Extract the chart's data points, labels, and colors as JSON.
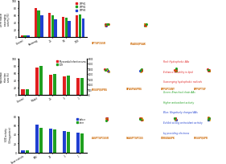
{
  "top_chart": {
    "categories": [
      "Control",
      "Pretreag",
      "25",
      "50",
      "100"
    ],
    "series": [
      {
        "color": "#e02020",
        "label": "DPPH1",
        "values": [
          3.5,
          78,
          65,
          55,
          60
        ]
      },
      {
        "color": "#20a020",
        "label": "DPPH2",
        "values": [
          3.5,
          72,
          58,
          52,
          62
        ]
      },
      {
        "color": "#2040d0",
        "label": "DPPH3",
        "values": [
          3.5,
          60,
          48,
          44,
          50
        ]
      }
    ],
    "ylim": [
      0,
      100
    ],
    "ylabel": "DPPH radical\nscavenging\nactivity (%)"
  },
  "mid_chart": {
    "categories": [
      "Control",
      "Model",
      "25",
      "5",
      "1"
    ],
    "red_vals": [
      15,
      75,
      55,
      50,
      45
    ],
    "green_vals": [
      500,
      2800,
      2000,
      1800,
      1600
    ],
    "ylim_left": [
      0,
      100
    ],
    "ylim_right": [
      0,
      3500
    ],
    "ylabel_left": "Myocardial\ninfarction\narea (%)",
    "label_red": "Myocardial infarction area",
    "label_green": "LDH"
  },
  "bot_chart": {
    "categories": [
      "Sham+vehicle",
      "MIRI",
      "25",
      "5",
      "1"
    ],
    "blue_vals": [
      5,
      62,
      52,
      48,
      44
    ],
    "green_vals": [
      5,
      55,
      50,
      46,
      42
    ],
    "ylim": [
      0,
      80
    ],
    "ylabel": "SOD activity\n(U/mg protein)",
    "label_blue": "before",
    "label_green": "after"
  },
  "peptides_row1": [
    "AAGPTGPIGSR",
    "GAAGPTGPIGS",
    "GDRGDAGPK",
    "GEGGPQGPR"
  ],
  "peptides_row2": [
    "GEGGPQGPRG",
    "GPAGPAGPRG",
    "GPPGPIGNY",
    "GPPGPTGF"
  ],
  "peptides_row3": [
    "GPTGPIGSR",
    "PGADGQPGAK"
  ],
  "mol_colors": [
    "#e02020",
    "#20a020",
    "#e0a020",
    "#2040d0",
    "#e02020",
    "#20a020",
    "#e0a020",
    "#cc6600",
    "#e02020",
    "#20a020"
  ],
  "legend_text": [
    "Red: Hydrophobic AAs",
    "Enhance solubility in lipid",
    "Scavenging hydrophobic radicals",
    "Green: Branched-chain AAs",
    "Higher antioxidant activity",
    "Blue: Negatively charged AAs",
    "Exhibit strong antioxidant activity",
    "by providing electrons"
  ],
  "legend_colors": [
    "#e02020",
    "#e02020",
    "#e02020",
    "#20a020",
    "#20a020",
    "#2040d0",
    "#2040d0",
    "#2040d0"
  ],
  "bg_color": "#ffffff"
}
